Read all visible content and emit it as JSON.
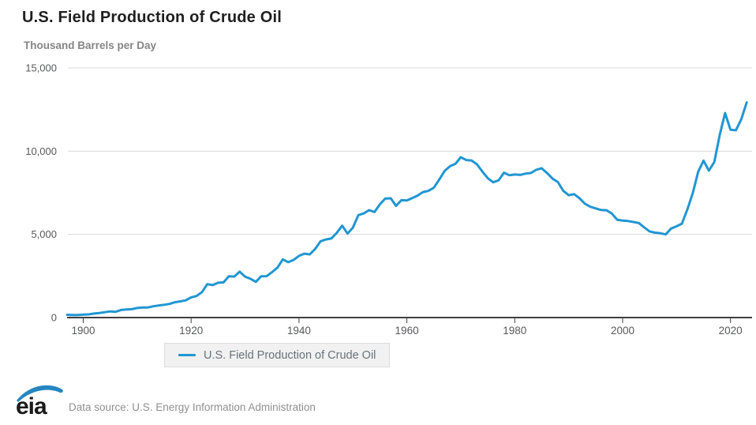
{
  "title": "U.S. Field Production of Crude Oil",
  "subtitle": "Thousand Barrels per Day",
  "legend": {
    "label": "U.S. Field Production of Crude Oil"
  },
  "footer": {
    "logo_text": "eia",
    "source": "Data source: U.S. Energy Information Administration"
  },
  "colors": {
    "line": "#2196d2",
    "grid": "#d9d9d9",
    "axis": "#404040",
    "tick_label": "#58595b",
    "title_text": "#1f1f1f",
    "subtitle_text": "#858585",
    "legend_bg": "#f1f1f1",
    "legend_border": "#dcdcdc",
    "legend_text": "#68737a",
    "source_text": "#8f8f8f",
    "logo_swoosh": "#2585c0",
    "logo_letters": "#1b1b1b"
  },
  "chart_data": {
    "type": "line",
    "title": "U.S. Field Production of Crude Oil",
    "xlabel": "",
    "ylabel": "Thousand Barrels per Day",
    "xlim": [
      1897,
      2024
    ],
    "ylim": [
      0,
      15000
    ],
    "grid": true,
    "legend_position": "bottom",
    "x_ticks": [
      1900,
      1920,
      1940,
      1960,
      1980,
      2000,
      2020
    ],
    "y_ticks": [
      0,
      5000,
      10000,
      15000
    ],
    "y_tick_labels": [
      "0",
      "5,000",
      "10,000",
      "15,000"
    ],
    "series": [
      {
        "name": "U.S. Field Production of Crude Oil",
        "x": [
          1897,
          1898,
          1899,
          1900,
          1901,
          1902,
          1903,
          1904,
          1905,
          1906,
          1907,
          1908,
          1909,
          1910,
          1911,
          1912,
          1913,
          1914,
          1915,
          1916,
          1917,
          1918,
          1919,
          1920,
          1921,
          1922,
          1923,
          1924,
          1925,
          1926,
          1927,
          1928,
          1929,
          1930,
          1931,
          1932,
          1933,
          1934,
          1935,
          1936,
          1937,
          1938,
          1939,
          1940,
          1941,
          1942,
          1943,
          1944,
          1945,
          1946,
          1947,
          1948,
          1949,
          1950,
          1951,
          1952,
          1953,
          1954,
          1955,
          1956,
          1957,
          1958,
          1959,
          1960,
          1961,
          1962,
          1963,
          1964,
          1965,
          1966,
          1967,
          1968,
          1969,
          1970,
          1971,
          1972,
          1973,
          1974,
          1975,
          1976,
          1977,
          1978,
          1979,
          1980,
          1981,
          1982,
          1983,
          1984,
          1985,
          1986,
          1987,
          1988,
          1989,
          1990,
          1991,
          1992,
          1993,
          1994,
          1995,
          1996,
          1997,
          1998,
          1999,
          2000,
          2001,
          2002,
          2003,
          2004,
          2005,
          2006,
          2007,
          2008,
          2009,
          2010,
          2011,
          2012,
          2013,
          2014,
          2015,
          2016,
          2017,
          2018,
          2019,
          2020,
          2021,
          2022,
          2023
        ],
        "values": [
          166,
          152,
          157,
          174,
          190,
          243,
          275,
          321,
          369,
          347,
          455,
          489,
          501,
          574,
          603,
          609,
          681,
          728,
          770,
          822,
          919,
          974,
          1037,
          1214,
          1294,
          1527,
          2007,
          1950,
          2092,
          2114,
          2477,
          2463,
          2760,
          2460,
          2332,
          2145,
          2481,
          2488,
          2730,
          3001,
          3500,
          3327,
          3464,
          3707,
          3842,
          3799,
          4125,
          4584,
          4695,
          4751,
          5088,
          5520,
          5046,
          5407,
          6158,
          6256,
          6458,
          6342,
          6807,
          7151,
          7170,
          6710,
          7054,
          7035,
          7183,
          7332,
          7542,
          7614,
          7804,
          8295,
          8810,
          9096,
          9238,
          9637,
          9463,
          9441,
          9208,
          8774,
          8375,
          8132,
          8245,
          8707,
          8552,
          8597,
          8572,
          8649,
          8688,
          8879,
          8971,
          8680,
          8349,
          8140,
          7613,
          7355,
          7417,
          7171,
          6847,
          6662,
          6560,
          6465,
          6452,
          6252,
          5881,
          5822,
          5801,
          5746,
          5681,
          5419,
          5178,
          5102,
          5064,
          5000,
          5353,
          5482,
          5645,
          6497,
          7468,
          8759,
          9431,
          8831,
          9352,
          10964,
          12289,
          11283,
          11254,
          11911,
          12927
        ]
      }
    ]
  }
}
